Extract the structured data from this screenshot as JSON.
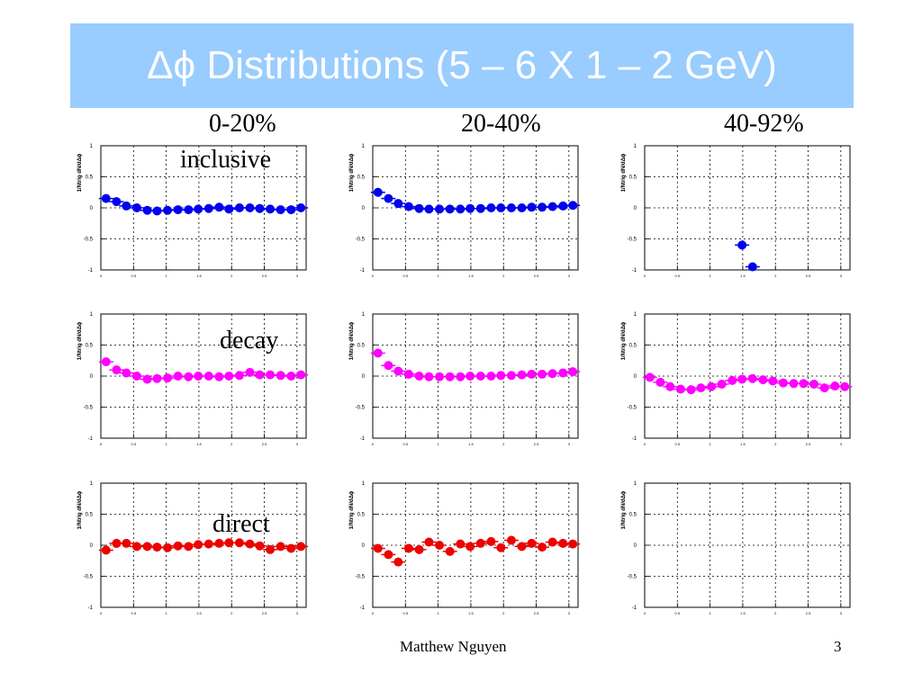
{
  "slide": {
    "title": "Δϕ Distributions (5 – 6 X 1 – 2 GeV)",
    "columns": [
      "0-20%",
      "20-40%",
      "40-92%"
    ],
    "rows": [
      "inclusive",
      "decay",
      "direct"
    ],
    "footer": {
      "author": "Matthew Nguyen",
      "page": "3"
    },
    "colors": {
      "title_bg": "#99ccff",
      "inclusive": "#0000ee",
      "decay": "#ff00ff",
      "direct": "#ee0000"
    }
  },
  "chart_data": [
    {
      "type": "scatter",
      "row": "inclusive",
      "column": "0-20%",
      "color": "#0000ee",
      "ylabel": "1/Ntrig dN/dΔϕ",
      "ylim": [
        -1,
        1
      ],
      "xlim": [
        0,
        3.14
      ],
      "yticks": [
        "1",
        "0.5",
        "0",
        "-0.5",
        "-1"
      ],
      "xticks": [
        "0",
        "0.5",
        "1",
        "1.5",
        "2",
        "2.5",
        "3"
      ],
      "x": [
        0.08,
        0.24,
        0.39,
        0.55,
        0.71,
        0.86,
        1.02,
        1.18,
        1.34,
        1.49,
        1.65,
        1.81,
        1.96,
        2.12,
        2.28,
        2.43,
        2.59,
        2.75,
        2.91,
        3.06
      ],
      "y": [
        0.15,
        0.1,
        0.03,
        0.0,
        -0.04,
        -0.05,
        -0.04,
        -0.03,
        -0.03,
        -0.02,
        -0.01,
        0.01,
        -0.02,
        0.0,
        0.0,
        -0.01,
        -0.02,
        -0.03,
        -0.03,
        0.0
      ]
    },
    {
      "type": "scatter",
      "row": "inclusive",
      "column": "20-40%",
      "color": "#0000ee",
      "ylabel": "1/Ntrig dN/dΔϕ",
      "ylim": [
        -1,
        1
      ],
      "xlim": [
        0,
        3.14
      ],
      "yticks": [
        "1",
        "0.5",
        "0",
        "-0.5",
        "-1"
      ],
      "xticks": [
        "0",
        "0.5",
        "1",
        "1.5",
        "2",
        "2.5",
        "3"
      ],
      "x": [
        0.08,
        0.24,
        0.39,
        0.55,
        0.71,
        0.86,
        1.02,
        1.18,
        1.34,
        1.49,
        1.65,
        1.81,
        1.96,
        2.12,
        2.28,
        2.43,
        2.59,
        2.75,
        2.91,
        3.06
      ],
      "y": [
        0.25,
        0.15,
        0.07,
        0.02,
        -0.01,
        -0.02,
        -0.02,
        -0.02,
        -0.02,
        -0.01,
        -0.01,
        0.0,
        0.0,
        0.0,
        0.0,
        0.01,
        0.01,
        0.02,
        0.03,
        0.04
      ]
    },
    {
      "type": "scatter",
      "row": "inclusive",
      "column": "40-92%",
      "color": "#0000ee",
      "ylabel": "1/Ntrig dN/dΔϕ",
      "ylim": [
        -1,
        1
      ],
      "xlim": [
        0,
        3.14
      ],
      "yticks": [
        "1",
        "0.5",
        "0",
        "-0.5",
        "-1"
      ],
      "xticks": [
        "0",
        "0.5",
        "1",
        "1.5",
        "2",
        "2.5",
        "3"
      ],
      "x": [
        1.49,
        1.65
      ],
      "y": [
        -0.6,
        -0.95
      ]
    },
    {
      "type": "scatter",
      "row": "decay",
      "column": "0-20%",
      "color": "#ff00ff",
      "ylabel": "1/Ntrig dN/dΔϕ",
      "ylim": [
        -1,
        1
      ],
      "xlim": [
        0,
        3.14
      ],
      "yticks": [
        "1",
        "0.5",
        "0",
        "-0.5",
        "-1"
      ],
      "xticks": [
        "0",
        "0.5",
        "1",
        "1.5",
        "2",
        "2.5",
        "3"
      ],
      "x": [
        0.08,
        0.24,
        0.39,
        0.55,
        0.71,
        0.86,
        1.02,
        1.18,
        1.34,
        1.49,
        1.65,
        1.81,
        1.96,
        2.12,
        2.28,
        2.43,
        2.59,
        2.75,
        2.91,
        3.06
      ],
      "y": [
        0.23,
        0.1,
        0.05,
        0.0,
        -0.05,
        -0.04,
        -0.03,
        0.0,
        -0.01,
        0.0,
        0.0,
        -0.01,
        0.0,
        0.01,
        0.06,
        0.02,
        0.02,
        0.01,
        0.0,
        0.02
      ]
    },
    {
      "type": "scatter",
      "row": "decay",
      "column": "20-40%",
      "color": "#ff00ff",
      "ylabel": "1/Ntrig dN/dΔϕ",
      "ylim": [
        -1,
        1
      ],
      "xlim": [
        0,
        3.14
      ],
      "yticks": [
        "1",
        "0.5",
        "0",
        "-0.5",
        "-1"
      ],
      "xticks": [
        "0",
        "0.5",
        "1",
        "1.5",
        "2",
        "2.5",
        "3"
      ],
      "x": [
        0.08,
        0.24,
        0.39,
        0.55,
        0.71,
        0.86,
        1.02,
        1.18,
        1.34,
        1.49,
        1.65,
        1.81,
        1.96,
        2.12,
        2.28,
        2.43,
        2.59,
        2.75,
        2.91,
        3.06
      ],
      "y": [
        0.37,
        0.17,
        0.08,
        0.03,
        0.0,
        -0.01,
        -0.01,
        -0.01,
        -0.01,
        0.0,
        0.0,
        0.0,
        0.01,
        0.01,
        0.02,
        0.03,
        0.03,
        0.04,
        0.05,
        0.07
      ]
    },
    {
      "type": "scatter",
      "row": "decay",
      "column": "40-92%",
      "color": "#ff00ff",
      "ylabel": "1/Ntrig dN/dΔϕ",
      "ylim": [
        -1,
        1
      ],
      "xlim": [
        0,
        3.14
      ],
      "yticks": [
        "1",
        "0.5",
        "0",
        "-0.5",
        "-1"
      ],
      "xticks": [
        "0",
        "0.5",
        "1",
        "1.5",
        "2",
        "2.5",
        "3"
      ],
      "x": [
        0.08,
        0.24,
        0.39,
        0.55,
        0.71,
        0.86,
        1.02,
        1.18,
        1.34,
        1.49,
        1.65,
        1.81,
        1.96,
        2.12,
        2.28,
        2.43,
        2.59,
        2.75,
        2.91,
        3.06
      ],
      "y": [
        -0.02,
        -0.1,
        -0.17,
        -0.21,
        -0.22,
        -0.19,
        -0.17,
        -0.13,
        -0.07,
        -0.05,
        -0.04,
        -0.06,
        -0.08,
        -0.11,
        -0.12,
        -0.12,
        -0.13,
        -0.19,
        -0.16,
        -0.17
      ]
    },
    {
      "type": "scatter",
      "row": "direct",
      "column": "0-20%",
      "color": "#ee0000",
      "ylabel": "1/Ntrig dN/dΔϕ",
      "ylim": [
        -1,
        1
      ],
      "xlim": [
        0,
        3.14
      ],
      "yticks": [
        "1",
        "0.5",
        "0",
        "-0.5",
        "-1"
      ],
      "xticks": [
        "0",
        "0.5",
        "1",
        "1.5",
        "2",
        "2.5",
        "3"
      ],
      "x": [
        0.08,
        0.24,
        0.39,
        0.55,
        0.71,
        0.86,
        1.02,
        1.18,
        1.34,
        1.49,
        1.65,
        1.81,
        1.96,
        2.12,
        2.28,
        2.43,
        2.59,
        2.75,
        2.91,
        3.06
      ],
      "y": [
        -0.08,
        0.03,
        0.03,
        -0.02,
        -0.02,
        -0.03,
        -0.04,
        -0.01,
        -0.02,
        0.01,
        0.02,
        0.03,
        0.04,
        0.04,
        0.02,
        -0.01,
        -0.07,
        -0.02,
        -0.05,
        -0.02
      ]
    },
    {
      "type": "scatter",
      "row": "direct",
      "column": "20-40%",
      "color": "#ee0000",
      "ylabel": "1/Ntrig dN/dΔϕ",
      "ylim": [
        -1,
        1
      ],
      "xlim": [
        0,
        3.14
      ],
      "yticks": [
        "1",
        "0.5",
        "0",
        "-0.5",
        "-1"
      ],
      "xticks": [
        "0",
        "0.5",
        "1",
        "1.5",
        "2",
        "2.5",
        "3"
      ],
      "x": [
        0.08,
        0.24,
        0.39,
        0.55,
        0.71,
        0.86,
        1.02,
        1.18,
        1.34,
        1.49,
        1.65,
        1.81,
        1.96,
        2.12,
        2.28,
        2.43,
        2.59,
        2.75,
        2.91,
        3.06
      ],
      "y": [
        -0.05,
        -0.15,
        -0.27,
        -0.05,
        -0.07,
        0.05,
        0.0,
        -0.1,
        0.02,
        -0.02,
        0.03,
        0.06,
        -0.04,
        0.08,
        -0.02,
        0.03,
        -0.03,
        0.05,
        0.03,
        0.02
      ]
    },
    {
      "type": "scatter",
      "row": "direct",
      "column": "40-92%",
      "color": "#ee0000",
      "ylabel": "1/Ntrig dN/dΔϕ",
      "ylim": [
        -1,
        1
      ],
      "xlim": [
        0,
        3.14
      ],
      "yticks": [
        "1",
        "0.5",
        "0",
        "-0.5",
        "-1"
      ],
      "xticks": [
        "0",
        "0.5",
        "1",
        "1.5",
        "2",
        "2.5",
        "3"
      ],
      "x": [],
      "y": []
    }
  ]
}
